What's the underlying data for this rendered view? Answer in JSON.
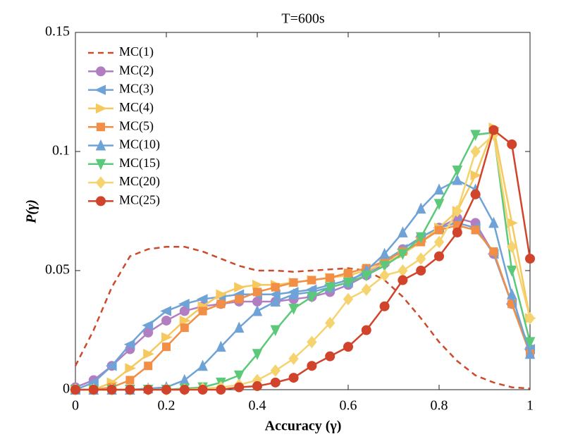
{
  "chart_data": {
    "type": "line",
    "title": "T=600s",
    "x_label": "Accuracy (γ)",
    "y_label": "P(γ)",
    "x": [
      0,
      0.04,
      0.08,
      0.12,
      0.16,
      0.2,
      0.24,
      0.28,
      0.32,
      0.36,
      0.4,
      0.44,
      0.48,
      0.52,
      0.56,
      0.6,
      0.64,
      0.68,
      0.72,
      0.76,
      0.8,
      0.84,
      0.88,
      0.92,
      0.96,
      1
    ],
    "xlim": [
      0,
      1
    ],
    "ylim": [
      0,
      0.15
    ],
    "xticks": [
      0,
      0.2,
      0.4,
      0.6,
      0.8,
      1
    ],
    "yticks": [
      0,
      0.05,
      0.1,
      0.15
    ],
    "legend": "upper left",
    "series": [
      {
        "name": "MC(1)",
        "color": "#cc4a2c",
        "dashed": true,
        "marker": "none",
        "values": [
          0.01,
          0.025,
          0.043,
          0.056,
          0.059,
          0.06,
          0.06,
          0.058,
          0.055,
          0.052,
          0.05,
          0.05,
          0.0495,
          0.05,
          0.0505,
          0.051,
          0.05,
          0.046,
          0.039,
          0.03,
          0.02,
          0.012,
          0.006,
          0.003,
          0.001,
          0.0005
        ]
      },
      {
        "name": "MC(2)",
        "color": "#b27ec2",
        "marker": "circle",
        "values": [
          0.001,
          0.004,
          0.01,
          0.017,
          0.024,
          0.029,
          0.033,
          0.035,
          0.036,
          0.037,
          0.037,
          0.037,
          0.038,
          0.039,
          0.041,
          0.044,
          0.048,
          0.053,
          0.059,
          0.064,
          0.068,
          0.072,
          0.07,
          0.057,
          0.036,
          0.017
        ]
      },
      {
        "name": "MC(3)",
        "color": "#6fa3d8",
        "marker": "left",
        "values": [
          0,
          0.003,
          0.01,
          0.019,
          0.027,
          0.033,
          0.036,
          0.038,
          0.039,
          0.04,
          0.04,
          0.04,
          0.041,
          0.042,
          0.044,
          0.046,
          0.049,
          0.054,
          0.059,
          0.064,
          0.068,
          0.07,
          0.068,
          0.057,
          0.036,
          0.017
        ]
      },
      {
        "name": "MC(4)",
        "color": "#f5c95e",
        "marker": "right",
        "values": [
          0,
          0,
          0.003,
          0.009,
          0.015,
          0.022,
          0.029,
          0.035,
          0.04,
          0.043,
          0.044,
          0.044,
          0.045,
          0.046,
          0.047,
          0.048,
          0.05,
          0.053,
          0.057,
          0.062,
          0.068,
          0.075,
          0.09,
          0.11,
          0.07,
          0.03
        ]
      },
      {
        "name": "MC(5)",
        "color": "#f28e45",
        "marker": "square",
        "values": [
          0,
          0,
          0.001,
          0.004,
          0.01,
          0.018,
          0.026,
          0.033,
          0.036,
          0.038,
          0.041,
          0.043,
          0.045,
          0.046,
          0.047,
          0.049,
          0.051,
          0.054,
          0.058,
          0.062,
          0.067,
          0.069,
          0.067,
          0.058,
          0.036,
          0.015
        ]
      },
      {
        "name": "MC(10)",
        "color": "#6fa3d8",
        "marker": "up",
        "values": [
          0,
          0,
          0,
          0,
          0.0005,
          0.001,
          0.004,
          0.01,
          0.018,
          0.026,
          0.033,
          0.037,
          0.04,
          0.041,
          0.043,
          0.045,
          0.05,
          0.057,
          0.066,
          0.076,
          0.084,
          0.088,
          0.084,
          0.07,
          0.04,
          0.015
        ]
      },
      {
        "name": "MC(15)",
        "color": "#5cc97a",
        "marker": "down",
        "values": [
          0,
          0,
          0,
          0,
          0,
          0,
          0.0005,
          0.001,
          0.003,
          0.006,
          0.015,
          0.025,
          0.034,
          0.039,
          0.043,
          0.045,
          0.048,
          0.052,
          0.057,
          0.064,
          0.078,
          0.092,
          0.107,
          0.108,
          0.05,
          0.02
        ]
      },
      {
        "name": "MC(20)",
        "color": "#f5d36e",
        "marker": "diamond",
        "values": [
          0,
          0,
          0,
          0,
          0,
          0,
          0,
          0.0005,
          0.001,
          0.002,
          0.004,
          0.008,
          0.013,
          0.02,
          0.028,
          0.038,
          0.042,
          0.048,
          0.05,
          0.055,
          0.062,
          0.075,
          0.1,
          0.107,
          0.06,
          0.03
        ]
      },
      {
        "name": "MC(25)",
        "color": "#d1432a",
        "marker": "circle",
        "values": [
          0,
          0,
          0,
          0,
          0,
          0,
          0,
          0,
          0,
          0.001,
          0.0015,
          0.003,
          0.005,
          0.01,
          0.014,
          0.018,
          0.025,
          0.035,
          0.046,
          0.05,
          0.056,
          0.066,
          0.082,
          0.109,
          0.103,
          0.055
        ]
      }
    ]
  }
}
